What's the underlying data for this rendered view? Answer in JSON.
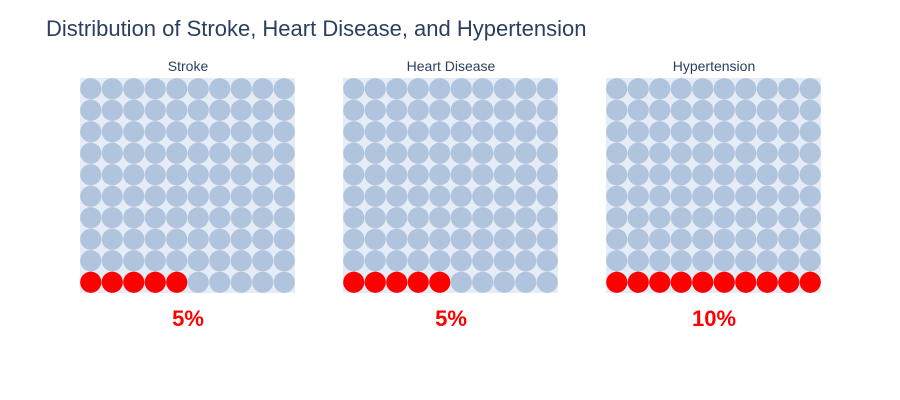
{
  "title": "Distribution of Stroke, Heart Disease, and Hypertension",
  "colors": {
    "filled": "#ff0000",
    "empty": "#b0c4de",
    "plot_bg": "#e5ecf6",
    "percent_text": "#ff0000"
  },
  "chart_data": [
    {
      "type": "waffle",
      "title": "Stroke",
      "value_percent": 5,
      "label": "5%",
      "grid": [
        10,
        10
      ],
      "filled_units": 5
    },
    {
      "type": "waffle",
      "title": "Heart Disease",
      "value_percent": 5,
      "label": "5%",
      "grid": [
        10,
        10
      ],
      "filled_units": 5
    },
    {
      "type": "waffle",
      "title": "Hypertension",
      "value_percent": 10,
      "label": "10%",
      "grid": [
        10,
        10
      ],
      "filled_units": 10
    }
  ]
}
